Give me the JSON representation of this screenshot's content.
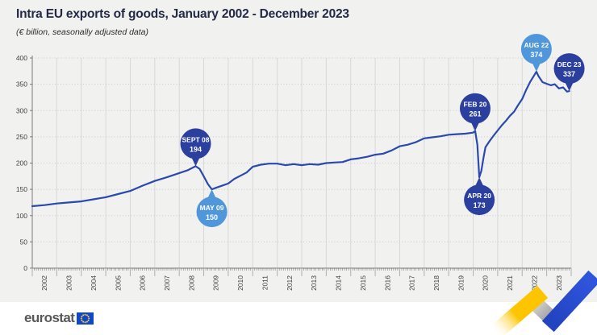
{
  "chart_data": {
    "type": "line",
    "title": "Intra EU exports of goods, January 2002 - December 2023",
    "subtitle": "(€ billion, seasonally adjusted data)",
    "xlabel": "",
    "ylabel": "",
    "xlim": [
      2002,
      2024
    ],
    "ylim": [
      0,
      400
    ],
    "y_ticks": [
      0,
      50,
      100,
      150,
      200,
      250,
      300,
      350,
      400
    ],
    "x_years": [
      2002,
      2003,
      2004,
      2005,
      2006,
      2007,
      2008,
      2009,
      2010,
      2011,
      2012,
      2013,
      2014,
      2015,
      2016,
      2017,
      2018,
      2019,
      2020,
      2021,
      2022,
      2023
    ],
    "grid": "vertical solid yearly, horizontal dotted every 50",
    "legend": "none",
    "series": [
      {
        "name": "Intra EU exports of goods (€ billion)",
        "x": [
          2002.0,
          2002.5,
          2003.0,
          2003.5,
          2004.0,
          2004.5,
          2005.0,
          2005.5,
          2006.0,
          2006.5,
          2007.0,
          2007.5,
          2008.0,
          2008.33,
          2008.67,
          2008.83,
          2009.0,
          2009.17,
          2009.33,
          2009.5,
          2009.75,
          2010.0,
          2010.25,
          2010.5,
          2010.75,
          2011.0,
          2011.33,
          2011.67,
          2012.0,
          2012.33,
          2012.67,
          2013.0,
          2013.33,
          2013.67,
          2014.0,
          2014.33,
          2014.67,
          2015.0,
          2015.33,
          2015.67,
          2016.0,
          2016.33,
          2016.67,
          2017.0,
          2017.33,
          2017.67,
          2018.0,
          2018.33,
          2018.67,
          2019.0,
          2019.33,
          2019.67,
          2020.0,
          2020.08,
          2020.17,
          2020.25,
          2020.33,
          2020.42,
          2020.5,
          2020.67,
          2020.83,
          2021.0,
          2021.17,
          2021.33,
          2021.5,
          2021.67,
          2021.83,
          2022.0,
          2022.17,
          2022.33,
          2022.5,
          2022.58,
          2022.67,
          2022.83,
          2023.0,
          2023.17,
          2023.33,
          2023.5,
          2023.67,
          2023.83,
          2023.92
        ],
        "values": [
          118,
          120,
          123,
          125,
          127,
          131,
          135,
          141,
          147,
          157,
          166,
          173,
          181,
          186,
          194,
          189,
          175,
          160,
          150,
          153,
          157,
          161,
          170,
          176,
          182,
          193,
          197,
          199,
          199,
          196,
          198,
          196,
          198,
          197,
          200,
          201,
          202,
          207,
          209,
          212,
          216,
          218,
          224,
          232,
          235,
          240,
          247,
          249,
          251,
          254,
          255,
          256,
          258,
          261,
          235,
          173,
          185,
          210,
          230,
          242,
          252,
          262,
          272,
          280,
          290,
          298,
          310,
          322,
          340,
          355,
          368,
          374,
          365,
          354,
          351,
          348,
          350,
          342,
          344,
          336,
          337
        ]
      }
    ],
    "annotations": [
      {
        "label": "SEPT 08",
        "value": "194",
        "x": 2008.67,
        "y": 194,
        "placement": "above",
        "color": "dark"
      },
      {
        "label": "MAY 09",
        "value": "150",
        "x": 2009.33,
        "y": 150,
        "placement": "below",
        "color": "light"
      },
      {
        "label": "FEB 20",
        "value": "261",
        "x": 2020.08,
        "y": 261,
        "placement": "above",
        "color": "dark"
      },
      {
        "label": "APR 20",
        "value": "173",
        "x": 2020.25,
        "y": 173,
        "placement": "below",
        "color": "dark"
      },
      {
        "label": "AUG 22",
        "value": "374",
        "x": 2022.58,
        "y": 374,
        "placement": "above",
        "color": "light"
      },
      {
        "label": "DEC 23",
        "value": "337",
        "x": 2023.92,
        "y": 337,
        "placement": "above",
        "color": "dark"
      }
    ]
  },
  "footer": {
    "logo_text": "eurostat"
  },
  "colors": {
    "line": "#2a49ae",
    "bubble_dark": "#2b3f9e",
    "bubble_light": "#4f97da",
    "bubble_text": "#ffffff",
    "background": "#f1f1ef",
    "footer_bg": "#ffffff",
    "grid_vertical": "#d8d8d8",
    "grid_dotted": "#c9c9c9",
    "axis": "#7a7a7a",
    "tick_label": "#3f3f3f",
    "title": "#232a45",
    "eu_flag_blue": "#0e47cb",
    "eu_star_yellow": "#ffd617",
    "ribbon_yellow": "#fdc500",
    "ribbon_gray": "#bdbdbd",
    "ribbon_blue": "#2b4ed2"
  }
}
